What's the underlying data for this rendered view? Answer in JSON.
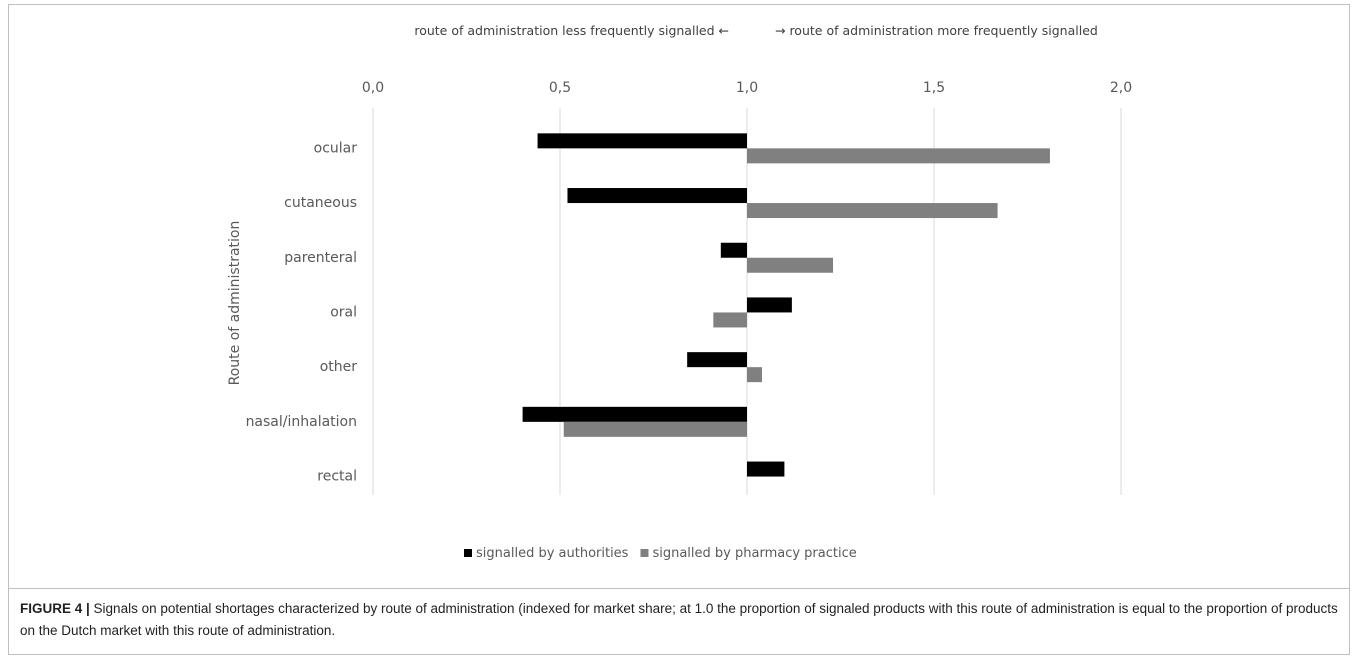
{
  "header": {
    "left_note": "route of administration less frequently signalled ←",
    "right_note": "→ route of administration more frequently signalled"
  },
  "caption": {
    "label": "FIGURE 4 |",
    "text": " Signals on potential shortages characterized by route of administration (indexed for market share; at 1.0 the proportion of signaled products with this route of administration is equal to the proportion of products on the Dutch market with this route of administration."
  },
  "chart_data": {
    "type": "bar",
    "orientation": "horizontal",
    "baseline": 1.0,
    "xlim": [
      0.0,
      2.0
    ],
    "xticks": [
      "0,0",
      "0,5",
      "1,0",
      "1,5",
      "2,0"
    ],
    "ylabel": "Route of administration",
    "categories": [
      "ocular",
      "cutaneous",
      "parenteral",
      "oral",
      "other",
      "nasal/inhalation",
      "rectal"
    ],
    "series": [
      {
        "name": "signalled by authorities",
        "color": "#000000",
        "values": [
          0.44,
          0.52,
          0.93,
          1.12,
          0.84,
          0.4,
          1.1
        ]
      },
      {
        "name": "signalled by pharmacy practice",
        "color": "#808080",
        "values": [
          1.81,
          1.67,
          1.23,
          0.91,
          1.04,
          0.51,
          null
        ]
      }
    ],
    "grid": true,
    "legend_position": "bottom"
  }
}
